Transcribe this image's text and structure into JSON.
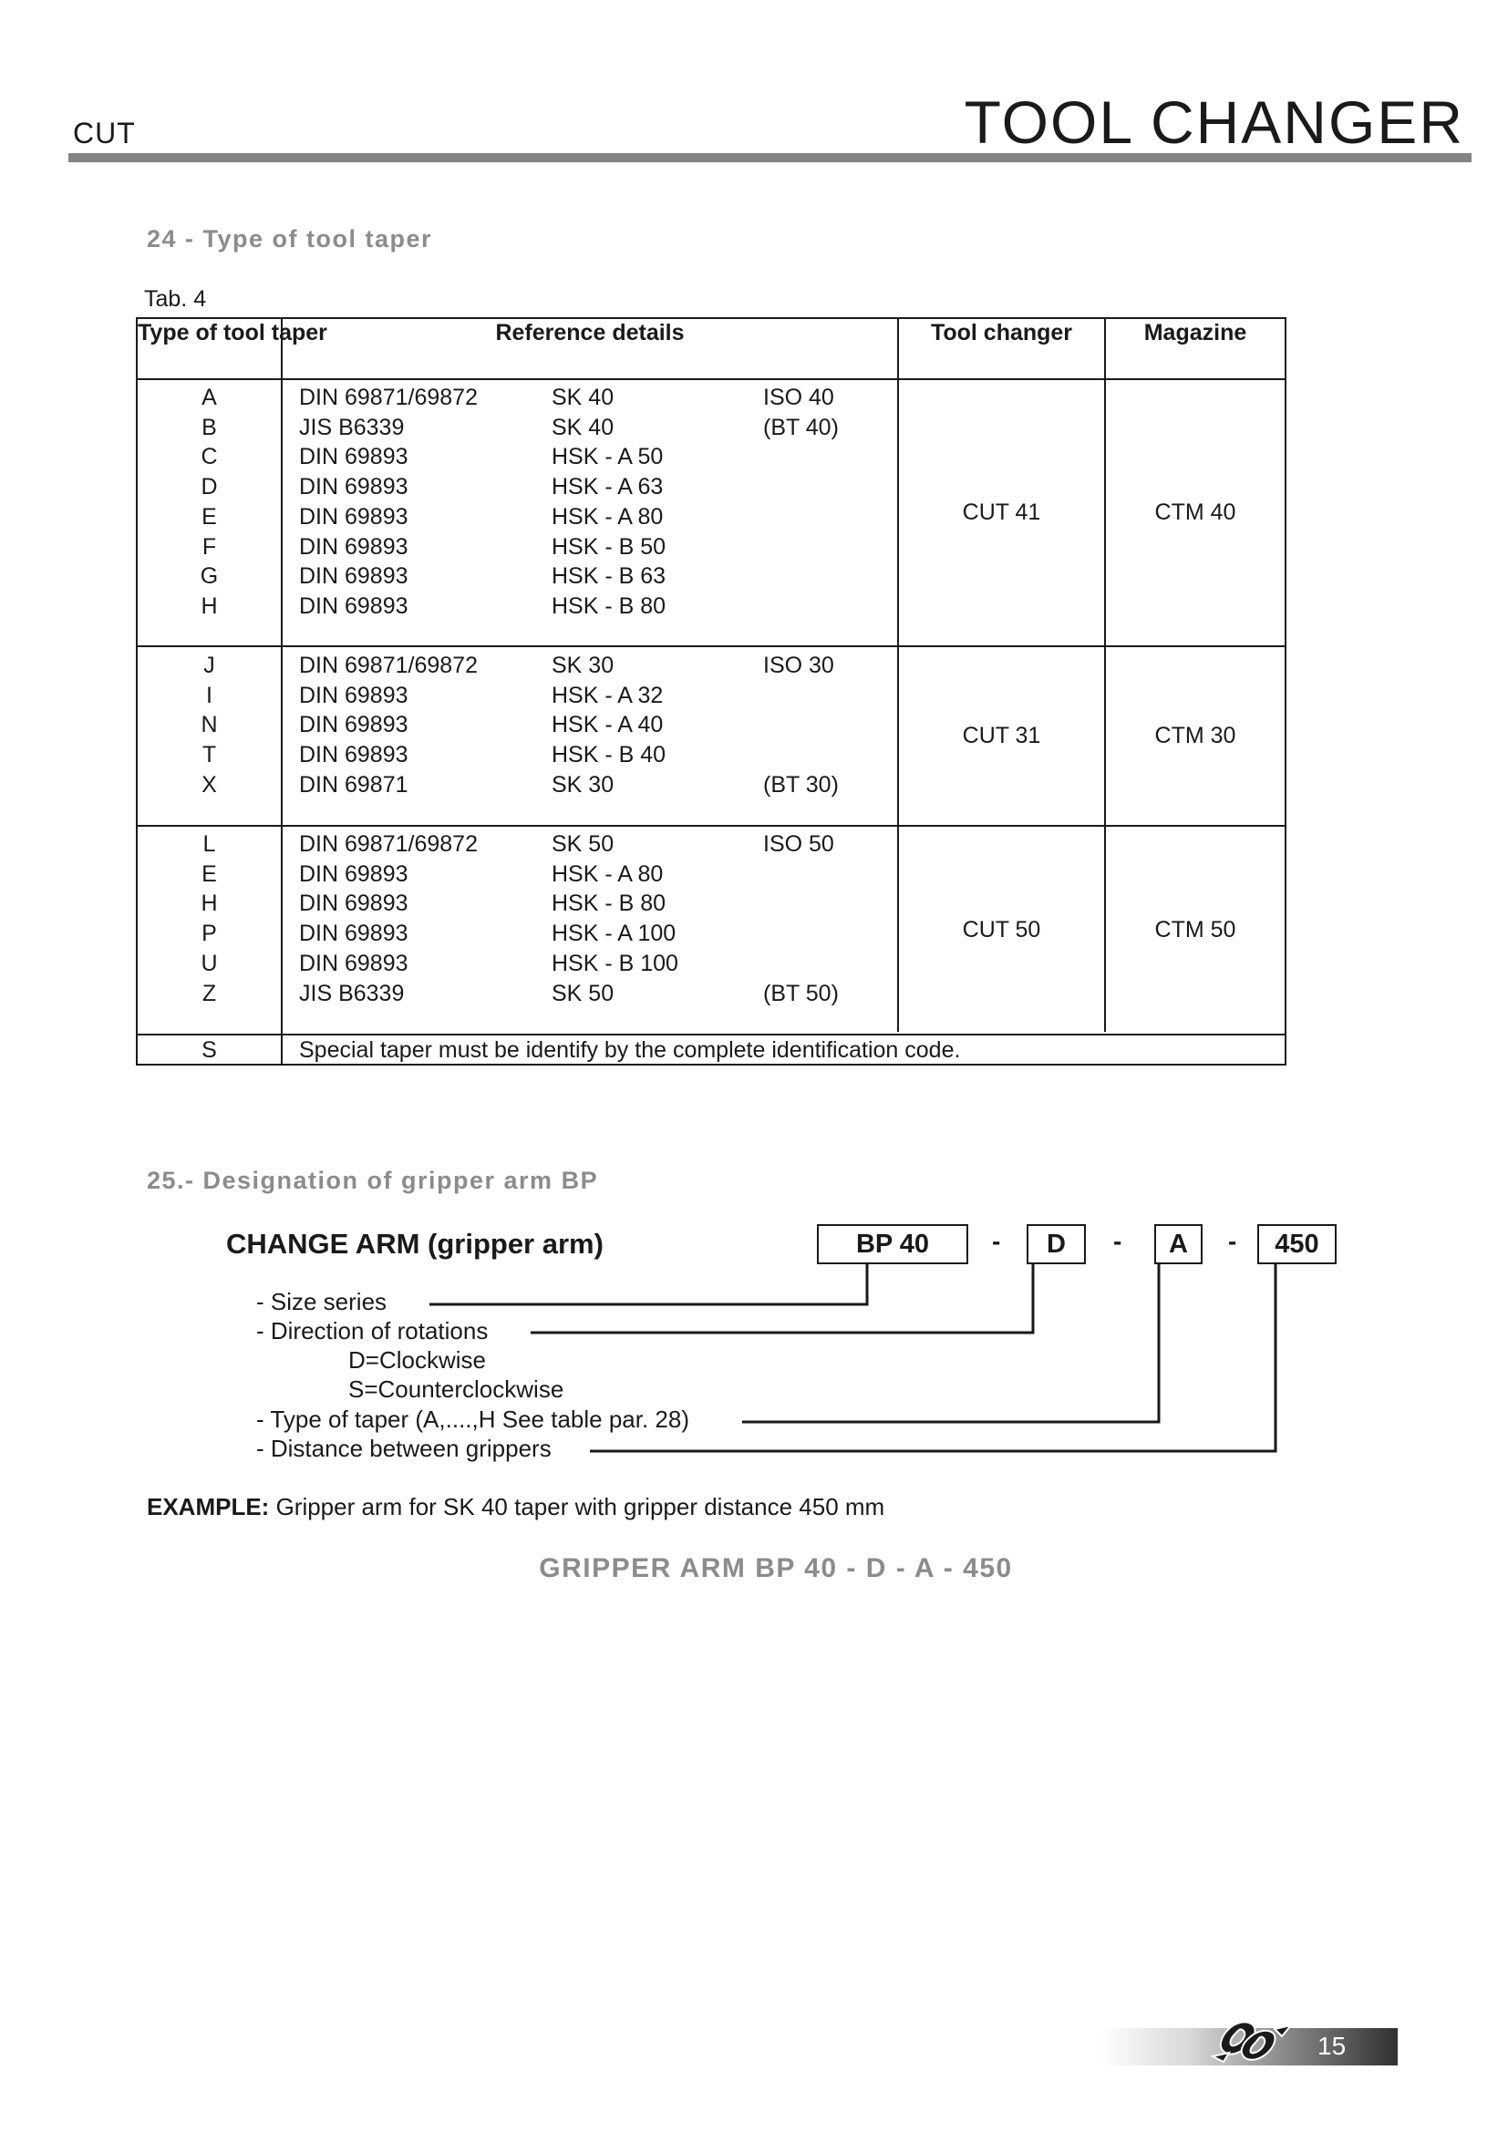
{
  "header": {
    "section": "CUT",
    "title": "TOOL CHANGER"
  },
  "section24": {
    "heading": "24 - Type of tool taper",
    "table_label": "Tab. 4",
    "columns": [
      "Type of tool taper",
      "Reference details",
      "Tool changer",
      "Magazine"
    ],
    "groups": [
      {
        "rows": [
          [
            "A",
            "DIN 69871/69872",
            "SK 40",
            "ISO 40"
          ],
          [
            "B",
            "JIS B6339",
            "SK 40",
            "(BT 40)"
          ],
          [
            "C",
            "DIN 69893",
            "HSK - A 50",
            ""
          ],
          [
            "D",
            "DIN 69893",
            "HSK - A 63",
            ""
          ],
          [
            "E",
            "DIN 69893",
            "HSK - A 80",
            ""
          ],
          [
            "F",
            "DIN 69893",
            "HSK - B 50",
            ""
          ],
          [
            "G",
            "DIN 69893",
            "HSK - B 63",
            ""
          ],
          [
            "H",
            "DIN 69893",
            "HSK - B 80",
            ""
          ]
        ],
        "tool_changer": "CUT 41",
        "magazine": "CTM 40"
      },
      {
        "rows": [
          [
            "J",
            "DIN 69871/69872",
            "SK 30",
            "ISO 30"
          ],
          [
            "I",
            "DIN 69893",
            "HSK - A 32",
            ""
          ],
          [
            "N",
            "DIN 69893",
            "HSK - A 40",
            ""
          ],
          [
            "T",
            "DIN 69893",
            "HSK - B 40",
            ""
          ],
          [
            "X",
            "DIN 69871",
            "SK 30",
            "(BT 30)"
          ]
        ],
        "tool_changer": "CUT 31",
        "magazine": "CTM 30"
      },
      {
        "rows": [
          [
            "L",
            "DIN 69871/69872",
            "SK 50",
            "ISO 50"
          ],
          [
            "E",
            "DIN 69893",
            "HSK - A 80",
            ""
          ],
          [
            "H",
            "DIN 69893",
            "HSK - B 80",
            ""
          ],
          [
            "P",
            "DIN 69893",
            "HSK - A 100",
            ""
          ],
          [
            "U",
            "DIN 69893",
            "HSK - B 100",
            ""
          ],
          [
            "Z",
            "JIS B6339",
            "SK 50",
            "(BT 50)"
          ]
        ],
        "tool_changer": "CUT 50",
        "magazine": "CTM 50"
      }
    ],
    "special": {
      "code": "S",
      "text": "Special taper must be identify by the complete identification code."
    }
  },
  "section25": {
    "heading": "25.- Designation of gripper arm  BP",
    "change_arm": "CHANGE ARM  (gripper arm)",
    "code_boxes": [
      "BP 40",
      "D",
      "A",
      "450"
    ],
    "separator": "-",
    "labels": {
      "size": "- Size series",
      "direction": "- Direction of rotations",
      "clockwise": "D=Clockwise",
      "counter": "S=Counterclockwise",
      "taper": "- Type of taper (A,....,H  See table par. 28)",
      "distance": "- Distance between grippers"
    },
    "example_label": "EXAMPLE:",
    "example_text": " Gripper arm for SK 40 taper with gripper distance 450 mm",
    "result": "GRIPPER ARM BP 40 - D - A - 450"
  },
  "footer": {
    "page_number": "15",
    "logo_icon": "knot-logo-icon"
  }
}
